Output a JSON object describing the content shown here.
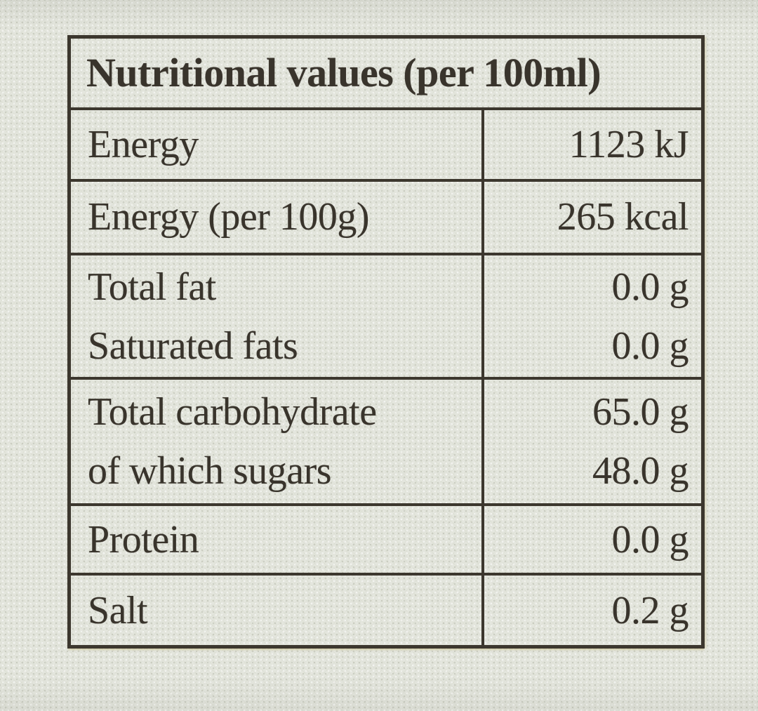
{
  "label": {
    "title": "Nutritional values (per 100ml)",
    "rows": [
      {
        "lines": [
          {
            "label": "Energy",
            "value": "1123 kJ"
          }
        ]
      },
      {
        "lines": [
          {
            "label": "Energy (per 100g)",
            "value": "265 kcal"
          }
        ]
      },
      {
        "lines": [
          {
            "label": "Total fat",
            "value": "0.0 g"
          },
          {
            "label": "Saturated fats",
            "value": "0.0 g"
          }
        ]
      },
      {
        "lines": [
          {
            "label": "Total carbohydrate",
            "value": "65.0 g"
          },
          {
            "label": "of which sugars",
            "value": "48.0 g"
          }
        ]
      },
      {
        "lines": [
          {
            "label": "Protein",
            "value": "0.0 g"
          }
        ]
      },
      {
        "lines": [
          {
            "label": "Salt",
            "value": "0.2 g"
          }
        ]
      }
    ],
    "colors": {
      "paper": "#e4e6de",
      "ink": "#39342c",
      "border": "#3c372e"
    }
  }
}
